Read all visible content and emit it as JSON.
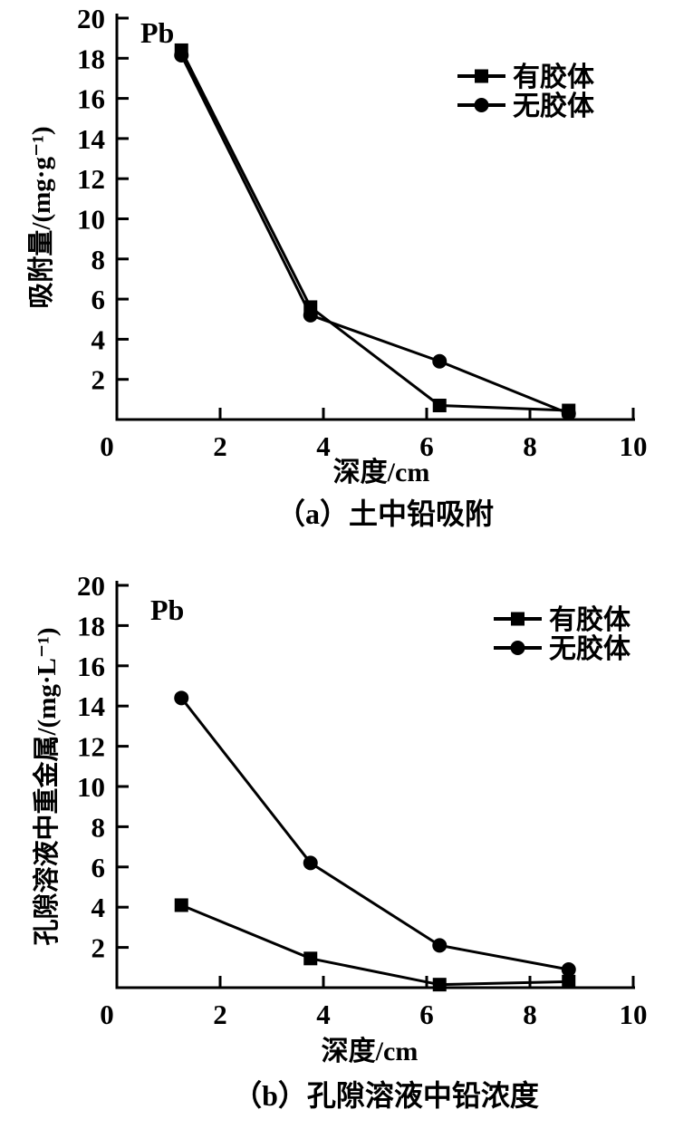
{
  "page": {
    "background": "#ffffff",
    "line_color": "#000000"
  },
  "chart_data": [
    {
      "type": "line",
      "panel": "a",
      "title": "（a）土中铅吸附",
      "annotation": "Pb",
      "xlabel": "深度/cm",
      "ylabel": "吸附量/(mg·g⁻¹)",
      "xlim": [
        0,
        10
      ],
      "ylim": [
        0,
        20
      ],
      "xticks": [
        0,
        2,
        4,
        6,
        8,
        10
      ],
      "yticks": [
        2,
        4,
        6,
        8,
        10,
        12,
        14,
        16,
        18,
        20
      ],
      "grid": false,
      "legend_position": "top-right",
      "color": "#000000",
      "x": [
        1.25,
        3.75,
        6.25,
        8.75
      ],
      "series": [
        {
          "name": "有胶体",
          "marker": "square",
          "values": [
            18.4,
            5.6,
            0.7,
            0.45
          ]
        },
        {
          "name": "无胶体",
          "marker": "circle",
          "values": [
            18.15,
            5.2,
            2.9,
            0.3
          ]
        }
      ]
    },
    {
      "type": "line",
      "panel": "b",
      "title": "（b）孔隙溶液中铅浓度",
      "annotation": "Pb",
      "xlabel": "深度/cm",
      "ylabel": "孔隙溶液中重金属/(mg·L⁻¹)",
      "xlim": [
        0,
        10
      ],
      "ylim": [
        0,
        20
      ],
      "xticks": [
        0,
        2,
        4,
        6,
        8,
        10
      ],
      "yticks": [
        2,
        4,
        6,
        8,
        10,
        12,
        14,
        16,
        18,
        20
      ],
      "grid": false,
      "legend_position": "top-right",
      "color": "#000000",
      "x": [
        1.25,
        3.75,
        6.25,
        8.75
      ],
      "series": [
        {
          "name": "有胶体",
          "marker": "square",
          "values": [
            4.1,
            1.45,
            0.15,
            0.3
          ]
        },
        {
          "name": "无胶体",
          "marker": "circle",
          "values": [
            14.4,
            6.2,
            2.1,
            0.9
          ]
        }
      ]
    }
  ]
}
